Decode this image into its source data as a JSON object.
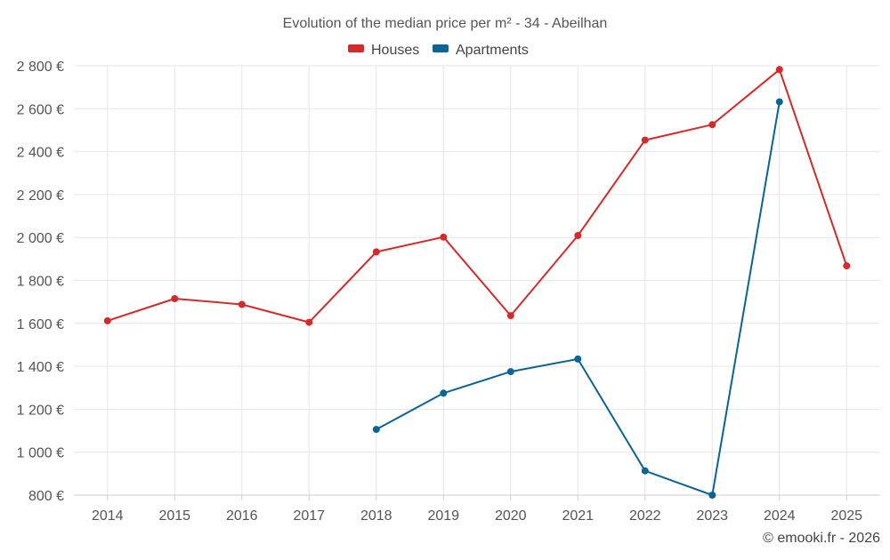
{
  "chart_data": {
    "type": "line",
    "title": "Evolution of the median price per m² - 34 - Abeilhan",
    "xlabel": "",
    "ylabel": "",
    "categories": [
      "2014",
      "2015",
      "2016",
      "2017",
      "2018",
      "2019",
      "2020",
      "2021",
      "2022",
      "2023",
      "2024",
      "2025"
    ],
    "ylim": [
      800,
      2800
    ],
    "yticks": [
      800,
      1000,
      1200,
      1400,
      1600,
      1800,
      2000,
      2200,
      2400,
      2600,
      2800
    ],
    "ytick_labels": [
      "800 €",
      "1 000 €",
      "1 200 €",
      "1 400 €",
      "1 600 €",
      "1 800 €",
      "2 000 €",
      "2 200 €",
      "2 400 €",
      "2 600 €",
      "2 800 €"
    ],
    "grid": true,
    "legend_position": "top-center",
    "series": [
      {
        "name": "Houses",
        "color": "#d42a2a",
        "values": [
          1612,
          1715,
          1688,
          1605,
          1933,
          2002,
          1636,
          2009,
          2454,
          2526,
          2782,
          1868
        ]
      },
      {
        "name": "Apartments",
        "color": "#0b6396",
        "values": [
          null,
          null,
          null,
          null,
          1106,
          1275,
          1375,
          1434,
          913,
          800,
          2632,
          null
        ]
      }
    ],
    "credit": "© emooki.fr - 2026"
  }
}
